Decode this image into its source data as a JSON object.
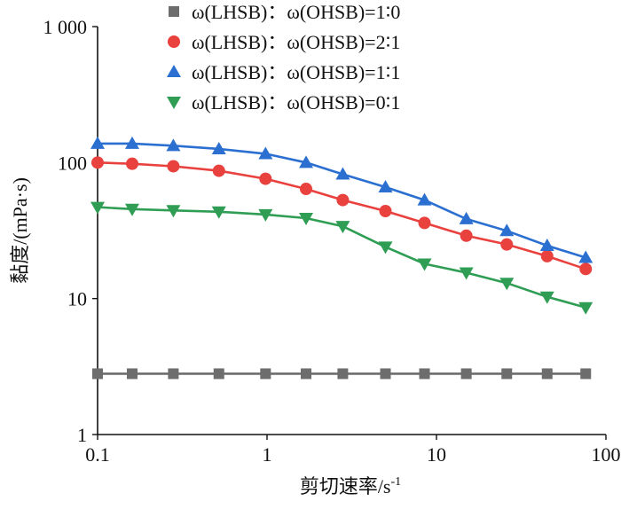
{
  "chart_data": {
    "type": "line",
    "xscale": "log",
    "yscale": "log",
    "xlim": [
      0.1,
      100
    ],
    "ylim": [
      1,
      1000
    ],
    "xlabel": "剪切速率/s",
    "xlabel_superscript": "-1",
    "ylabel": "黏度/(mPa·s)",
    "x_ticks": [
      {
        "value": 0.1,
        "label": "0.1"
      },
      {
        "value": 1,
        "label": "1"
      },
      {
        "value": 10,
        "label": "10"
      },
      {
        "value": 100,
        "label": "100"
      }
    ],
    "y_ticks": [
      {
        "value": 1,
        "label": "1"
      },
      {
        "value": 10,
        "label": "10"
      },
      {
        "value": 100,
        "label": "100"
      },
      {
        "value": 1000,
        "label": "1 000"
      }
    ],
    "grid": false,
    "legend_position": "top-right",
    "x": [
      0.1,
      0.16,
      0.28,
      0.52,
      0.98,
      1.7,
      2.8,
      5.0,
      8.5,
      15,
      26,
      45,
      76
    ],
    "series": [
      {
        "name": "ω(LHSB)：ω(OHSB)=1∶0",
        "marker": "square",
        "color": "#6d6d6d",
        "values": [
          2.8,
          2.8,
          2.8,
          2.8,
          2.8,
          2.8,
          2.8,
          2.8,
          2.8,
          2.8,
          2.8,
          2.8,
          2.8
        ]
      },
      {
        "name": "ω(LHSB)：ω(OHSB)=2∶1",
        "marker": "circle",
        "color": "#e8413e",
        "values": [
          100,
          98,
          94,
          87,
          76,
          64,
          53,
          44,
          36,
          29,
          25,
          20.5,
          16.5
        ]
      },
      {
        "name": "ω(LHSB)：ω(OHSB)=1∶1",
        "marker": "triangle-up",
        "color": "#2b6fd1",
        "values": [
          138,
          138,
          133,
          126,
          116,
          100,
          82,
          66,
          53,
          38.5,
          31.5,
          24.5,
          20
        ]
      },
      {
        "name": "ω(LHSB)：ω(OHSB)=0∶1",
        "marker": "triangle-down",
        "color": "#2f9e54",
        "values": [
          47,
          45.5,
          44.5,
          43.5,
          41.5,
          39,
          34,
          24,
          18,
          15.5,
          13,
          10.3,
          8.6
        ]
      }
    ]
  }
}
